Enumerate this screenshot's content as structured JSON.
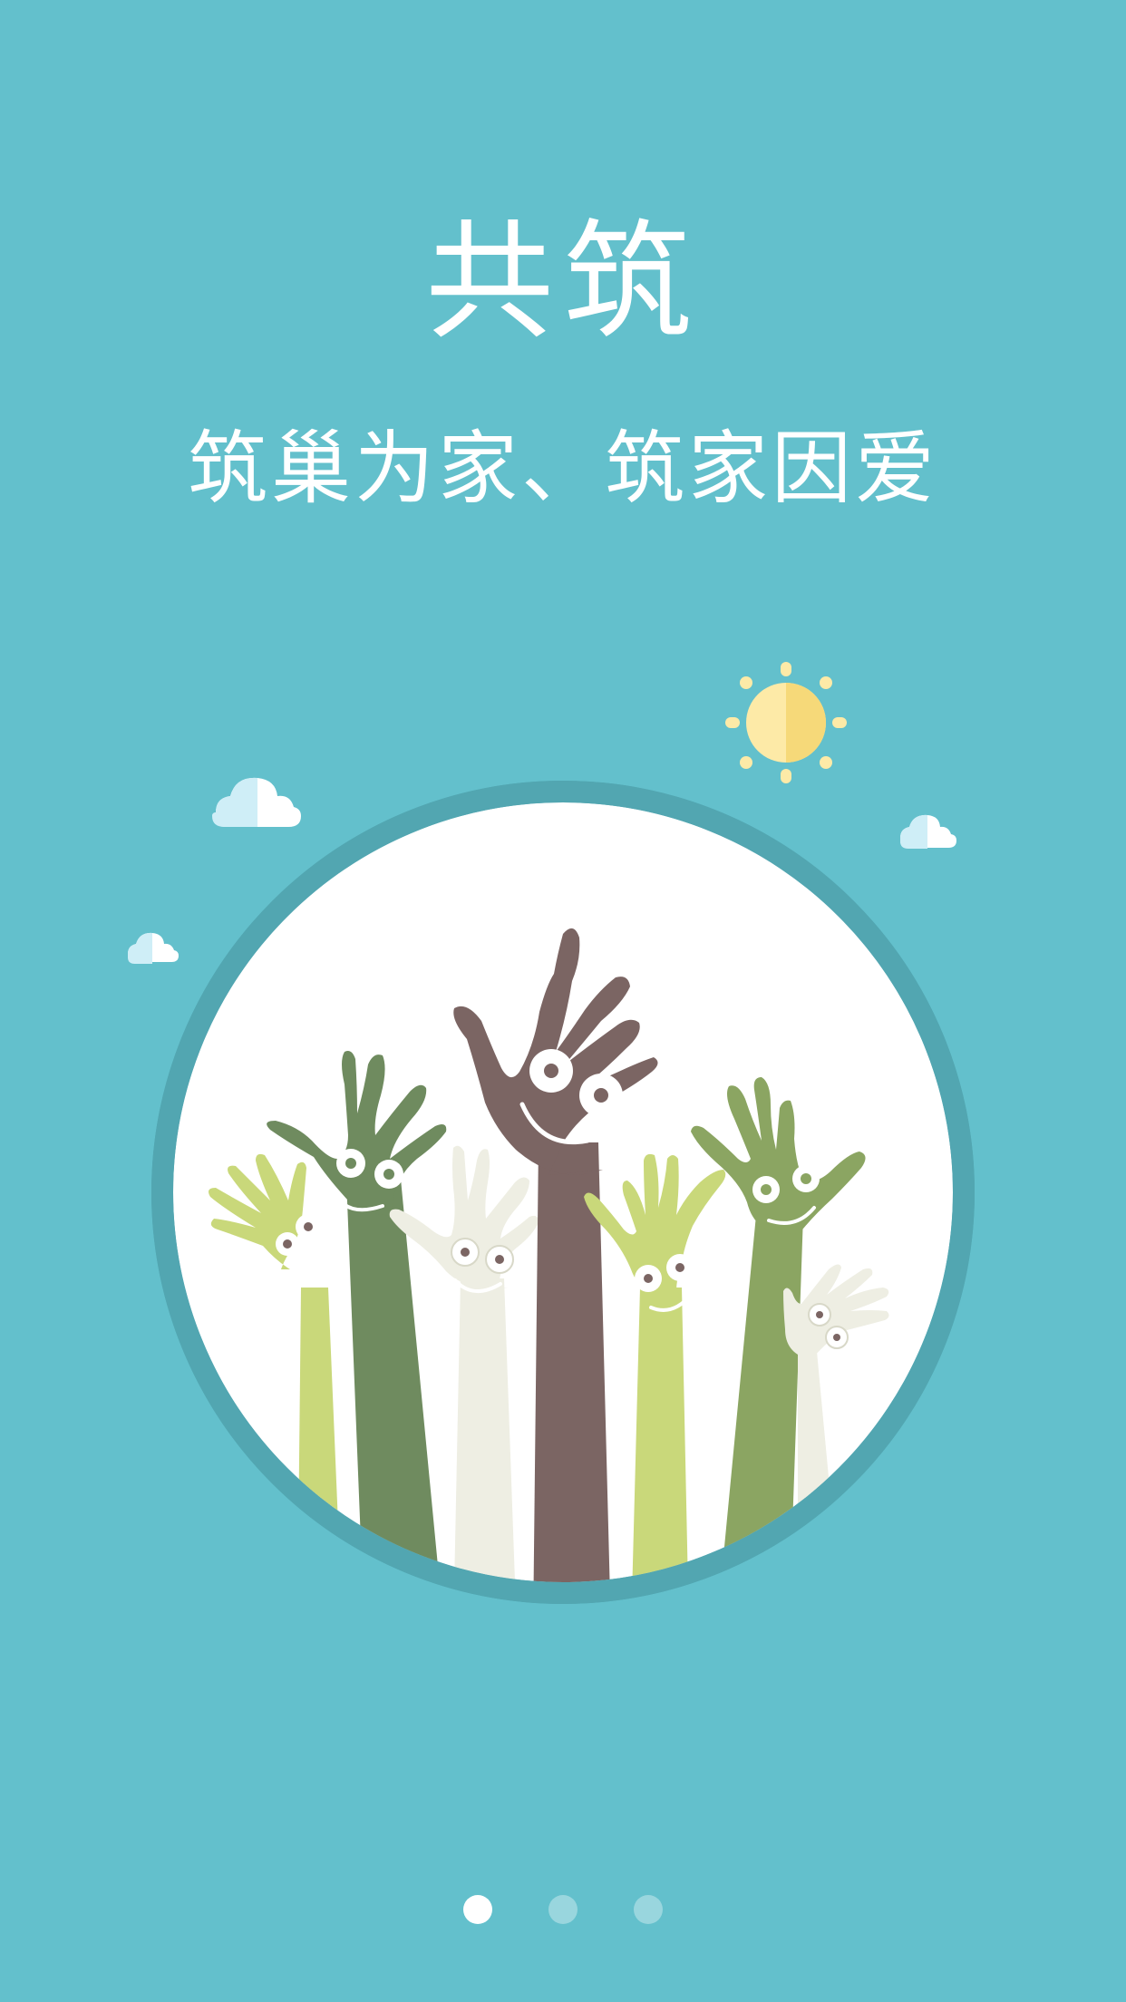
{
  "splash": {
    "title": "共筑",
    "slogan": "筑巢为家、筑家因爱"
  },
  "illustration": {
    "icon": "raised-hands-icon",
    "elements": [
      "sun-icon",
      "cloud-icon",
      "cloud-icon",
      "cloud-icon"
    ]
  },
  "pager": {
    "pages": 3,
    "current": 1
  },
  "colors": {
    "background": "#63c0cc",
    "circle_ring": "#52a6b1",
    "hand_brown": "#7b6563",
    "hand_dark_green": "#6f8b5f",
    "hand_green": "#8ba562",
    "hand_light_green": "#c9d87a",
    "hand_cream": "#eeeee3",
    "sun": "#fbe8a4"
  }
}
